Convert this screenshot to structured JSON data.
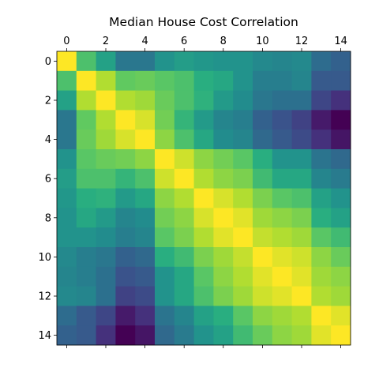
{
  "chart_data": {
    "type": "heatmap",
    "title": "Median House Cost Correlation",
    "xlabel": "",
    "ylabel": "",
    "x_tick_labels": [
      "0",
      "2",
      "4",
      "6",
      "8",
      "10",
      "12",
      "14"
    ],
    "y_tick_labels": [
      "0",
      "2",
      "4",
      "6",
      "8",
      "10",
      "12",
      "14"
    ],
    "x_tick_values": [
      0,
      2,
      4,
      6,
      8,
      10,
      12,
      14
    ],
    "y_tick_values": [
      0,
      2,
      4,
      6,
      8,
      10,
      12,
      14
    ],
    "x_range": [
      -0.5,
      14.5
    ],
    "y_range": [
      -0.5,
      14.5
    ],
    "x_axis_position": "top",
    "y_inverted": true,
    "grid": false,
    "legend": "none",
    "colormap": "viridis",
    "value_range": [
      0.3,
      1.0
    ],
    "matrix": [
      [
        1.0,
        0.8,
        0.7,
        0.58,
        0.58,
        0.66,
        0.69,
        0.67,
        0.66,
        0.66,
        0.63,
        0.62,
        0.63,
        0.55,
        0.52
      ],
      [
        0.8,
        1.0,
        0.92,
        0.83,
        0.84,
        0.82,
        0.8,
        0.74,
        0.72,
        0.66,
        0.6,
        0.6,
        0.62,
        0.5,
        0.5
      ],
      [
        0.7,
        0.92,
        1.0,
        0.92,
        0.9,
        0.84,
        0.8,
        0.75,
        0.68,
        0.64,
        0.58,
        0.56,
        0.56,
        0.45,
        0.4
      ],
      [
        0.58,
        0.83,
        0.92,
        1.0,
        0.96,
        0.85,
        0.76,
        0.68,
        0.62,
        0.6,
        0.52,
        0.48,
        0.44,
        0.35,
        0.3
      ],
      [
        0.58,
        0.84,
        0.9,
        0.96,
        1.0,
        0.88,
        0.8,
        0.72,
        0.64,
        0.62,
        0.54,
        0.5,
        0.46,
        0.4,
        0.34
      ],
      [
        0.66,
        0.82,
        0.84,
        0.85,
        0.88,
        1.0,
        0.95,
        0.88,
        0.85,
        0.82,
        0.74,
        0.66,
        0.66,
        0.57,
        0.54
      ],
      [
        0.69,
        0.8,
        0.8,
        0.76,
        0.8,
        0.95,
        1.0,
        0.92,
        0.88,
        0.86,
        0.78,
        0.72,
        0.72,
        0.62,
        0.59
      ],
      [
        0.67,
        0.74,
        0.75,
        0.68,
        0.72,
        0.88,
        0.92,
        1.0,
        0.96,
        0.92,
        0.86,
        0.82,
        0.8,
        0.7,
        0.66
      ],
      [
        0.66,
        0.72,
        0.68,
        0.62,
        0.64,
        0.85,
        0.88,
        0.96,
        1.0,
        0.97,
        0.9,
        0.88,
        0.86,
        0.74,
        0.7
      ],
      [
        0.66,
        0.66,
        0.64,
        0.6,
        0.62,
        0.82,
        0.86,
        0.92,
        0.97,
        1.0,
        0.94,
        0.92,
        0.9,
        0.82,
        0.78
      ],
      [
        0.63,
        0.6,
        0.58,
        0.52,
        0.54,
        0.74,
        0.78,
        0.86,
        0.9,
        0.94,
        1.0,
        0.97,
        0.95,
        0.88,
        0.84
      ],
      [
        0.62,
        0.6,
        0.56,
        0.48,
        0.5,
        0.66,
        0.72,
        0.82,
        0.88,
        0.92,
        0.97,
        1.0,
        0.97,
        0.9,
        0.88
      ],
      [
        0.63,
        0.62,
        0.56,
        0.44,
        0.46,
        0.66,
        0.72,
        0.8,
        0.86,
        0.9,
        0.95,
        0.97,
        1.0,
        0.92,
        0.9
      ],
      [
        0.55,
        0.5,
        0.45,
        0.35,
        0.4,
        0.57,
        0.62,
        0.7,
        0.74,
        0.82,
        0.88,
        0.9,
        0.92,
        1.0,
        0.97
      ],
      [
        0.52,
        0.5,
        0.4,
        0.3,
        0.34,
        0.54,
        0.59,
        0.66,
        0.7,
        0.78,
        0.84,
        0.88,
        0.9,
        0.97,
        1.0
      ]
    ]
  }
}
